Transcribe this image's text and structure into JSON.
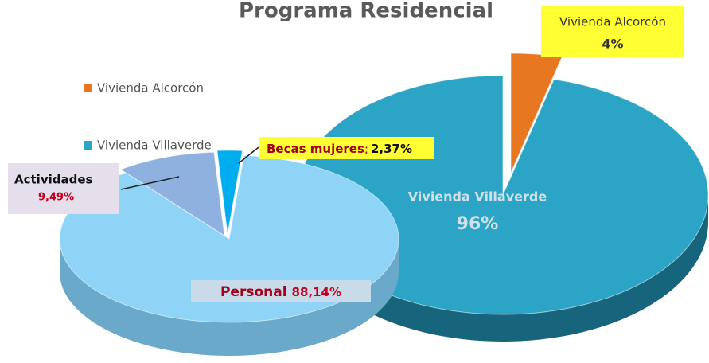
{
  "chart_data": [
    {
      "type": "pie",
      "title": "Programa Residencial",
      "categories": [
        "Vivienda Alcorcón",
        "Vivienda Villaverde"
      ],
      "values": [
        4,
        96
      ],
      "value_labels": [
        "4%",
        "96%"
      ],
      "colors": [
        "#e87722",
        "#2ba4c6"
      ],
      "legend": "left"
    },
    {
      "type": "pie",
      "categories": [
        "Personal",
        "Actividades",
        "Becas mujeres"
      ],
      "values": [
        88.14,
        9.49,
        2.37
      ],
      "value_labels": [
        "88,14%",
        "9,49%",
        "2,37%"
      ],
      "label_separator": ";",
      "colors": [
        "#8fd4f6",
        "#8fb1e0",
        "#00adef"
      ]
    }
  ]
}
